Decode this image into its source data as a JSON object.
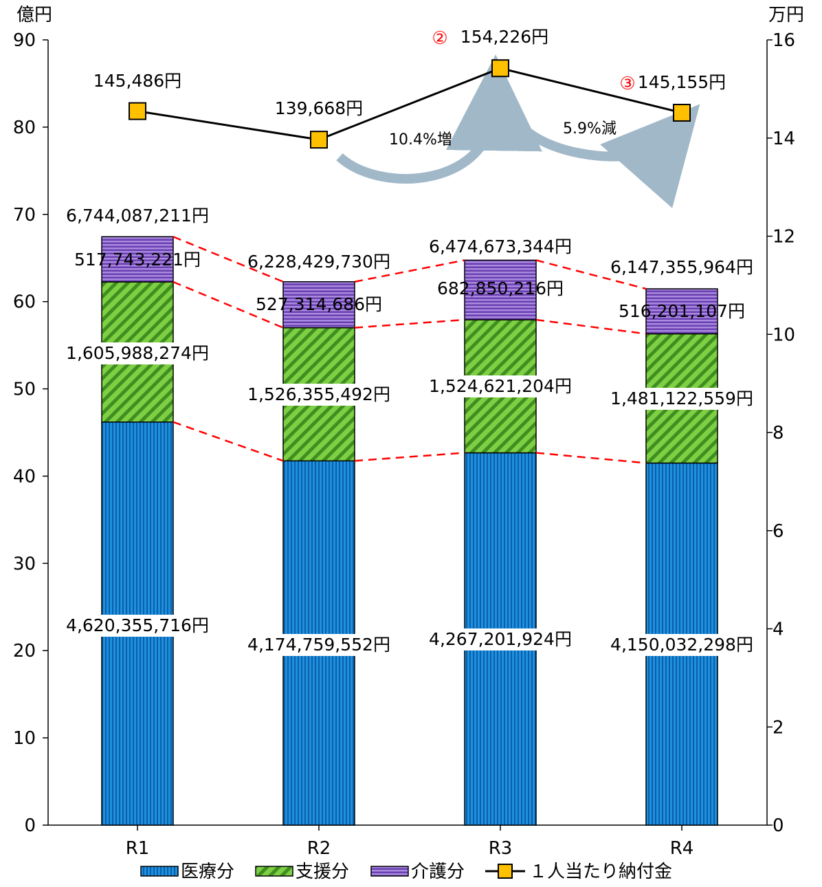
{
  "chart_data": {
    "type": "bar",
    "stacked": true,
    "categories": [
      "R1",
      "R2",
      "R3",
      "R4"
    ],
    "left_axis": {
      "unit": "億円",
      "min": 0,
      "max": 90,
      "ticks": [
        0,
        10,
        20,
        30,
        40,
        50,
        60,
        70,
        80,
        90
      ]
    },
    "right_axis": {
      "unit": "万円",
      "min": 0,
      "max": 16,
      "ticks": [
        0,
        2,
        4,
        6,
        8,
        10,
        12,
        14,
        16
      ]
    },
    "series": [
      {
        "name": "医療分",
        "kind": "bar",
        "color": "#1e90e0",
        "values": [
          46.2,
          41.75,
          42.67,
          41.5
        ],
        "labels": [
          "4,620,355,716円",
          "4,174,759,552円",
          "4,267,201,924円",
          "4,150,032,298円"
        ]
      },
      {
        "name": "支援分",
        "kind": "bar",
        "color": "#6abf3b",
        "values": [
          16.06,
          15.26,
          15.25,
          14.81
        ],
        "labels": [
          "1,605,988,274円",
          "1,526,355,492円",
          "1,524,621,204円",
          "1,481,122,559円"
        ]
      },
      {
        "name": "介護分",
        "kind": "bar",
        "color": "#8a63c7",
        "values": [
          5.18,
          5.27,
          6.83,
          5.16
        ],
        "labels": [
          "517,743,221円",
          "527,314,686円",
          "682,850,216円",
          "516,201,107円"
        ]
      },
      {
        "name": "１人当たり納付金",
        "kind": "line",
        "axis": "right",
        "color": "#ffc000",
        "values": [
          14.5486,
          13.9668,
          15.4226,
          14.5155
        ],
        "labels": [
          "145,486円",
          "139,668円",
          "154,226円",
          "145,155円"
        ]
      }
    ],
    "totals": [
      "6,744,087,211円",
      "6,228,429,730円",
      "6,474,673,344円",
      "6,147,355,964円"
    ],
    "markers": [
      {
        "index": 2,
        "text": "②"
      },
      {
        "index": 3,
        "text": "③"
      }
    ],
    "annotations": [
      {
        "from": 1,
        "to": 2,
        "text": "10.4%増"
      },
      {
        "from": 2,
        "to": 3,
        "text": "5.9%減"
      }
    ],
    "legend_position": "bottom",
    "grid": false
  }
}
